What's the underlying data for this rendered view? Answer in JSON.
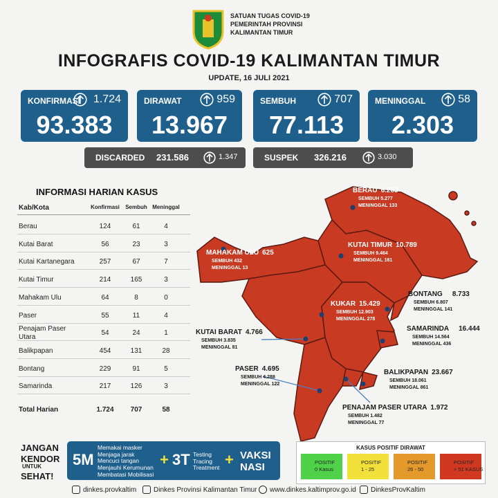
{
  "header": {
    "org": [
      "SATUAN TUGAS COVID-19",
      "PEMERINTAH PROVINSI",
      "KALIMANTAN TIMUR"
    ],
    "title": "INFOGRAFIS COVID-19 KALIMANTAN TIMUR",
    "update": "UPDATE, 16 JULI 2021"
  },
  "stats": [
    {
      "label": "KONFIRMASI",
      "change": "1.724",
      "total": "93.383"
    },
    {
      "label": "DIRAWAT",
      "change": "959",
      "total": "13.967"
    },
    {
      "label": "SEMBUH",
      "change": "707",
      "total": "77.113"
    },
    {
      "label": "MENINGGAL",
      "change": "58",
      "total": "2.303"
    }
  ],
  "secondary": [
    {
      "label": "DISCARDED",
      "total": "231.586",
      "change": "1.347"
    },
    {
      "label": "SUSPEK",
      "total": "326.216",
      "change": "3.030"
    }
  ],
  "table": {
    "title": "INFORMASI HARIAN KASUS",
    "columns": [
      "Kab/Kota",
      "Konfirmasi",
      "Sembuh",
      "Meninggal"
    ],
    "rows": [
      [
        "Berau",
        "124",
        "61",
        "4"
      ],
      [
        "Kutai Barat",
        "56",
        "23",
        "3"
      ],
      [
        "Kutai Kartanegara",
        "257",
        "67",
        "7"
      ],
      [
        "Kutai Timur",
        "214",
        "165",
        "3"
      ],
      [
        "Mahakam Ulu",
        "64",
        "8",
        "0"
      ],
      [
        "Paser",
        "55",
        "11",
        "4"
      ],
      [
        "Penajam Paser Utara",
        "54",
        "24",
        "1"
      ],
      [
        "Balikpapan",
        "454",
        "131",
        "28"
      ],
      [
        "Bontang",
        "229",
        "91",
        "5"
      ],
      [
        "Samarinda",
        "217",
        "126",
        "3"
      ]
    ],
    "total": [
      "Total Harian",
      "1.724",
      "707",
      "58"
    ]
  },
  "map": {
    "regions": [
      {
        "name": "BERAU",
        "total": "6.263",
        "sembuh": "SEMBUH 5.277",
        "meninggal": "MENINGGAL 133"
      },
      {
        "name": "MAHAKAM ULU",
        "total": "625",
        "sembuh": "SEMBUH 432",
        "meninggal": "MENINGGAL 13"
      },
      {
        "name": "KUTAI TIMUR",
        "total": "10.789",
        "sembuh": "SEMBUH 9.464",
        "meninggal": "MENINGGAL 161"
      },
      {
        "name": "BONTANG",
        "total": "8.733",
        "sembuh": "SEMBUH 6.807",
        "meninggal": "MENINGGAL 141"
      },
      {
        "name": "KUKAR",
        "total": "15.429",
        "sembuh": "SEMBUH 12.903",
        "meninggal": "MENINGGAL 278"
      },
      {
        "name": "KUTAI BARAT",
        "total": "4.766",
        "sembuh": "SEMBUH 3.835",
        "meninggal": "MENINGGAL 81"
      },
      {
        "name": "SAMARINDA",
        "total": "16.444",
        "sembuh": "SEMBUH 14.564",
        "meninggal": "MENINGGAL 436"
      },
      {
        "name": "PASER",
        "total": "4.695",
        "sembuh": "SEMBUH 4.288",
        "meninggal": "MENINGGAL 122"
      },
      {
        "name": "BALIKPAPAN",
        "total": "23.667",
        "sembuh": "SEMBUH 18.061",
        "meninggal": "MENINGGAL 861"
      },
      {
        "name": "PENAJAM PASER UTARA",
        "total": "1.972",
        "sembuh": "SEMBUH 1.482",
        "meninggal": "MENINGGAL 77"
      }
    ]
  },
  "footer": {
    "slogan": [
      "JANGAN",
      "KENDOR",
      "UNTUK",
      "SEHAT!"
    ],
    "m5": {
      "label": "5M",
      "items": [
        "Memakai masker",
        "Menjaga jarak",
        "Mencuci tangan",
        "Menjauhi Kerumunan",
        "Membatasi Mobilisasi"
      ]
    },
    "t3": {
      "label": "3T",
      "items": [
        "Testing",
        "Tracing",
        "Treatment"
      ]
    },
    "vaksin": [
      "VAKSI",
      "NASI"
    ]
  },
  "legend": {
    "title": "KASUS POSITIF DIRAWAT",
    "items": [
      {
        "title": "POSITIF",
        "range": "0 Kasus",
        "color": "#4fd14a"
      },
      {
        "title": "POSITIF",
        "range": "1 - 25",
        "color": "#f2e13a"
      },
      {
        "title": "POSITIF",
        "range": "26 - 50",
        "color": "#e39a2a"
      },
      {
        "title": "POSITIF",
        "range": "> 51 KASUS",
        "color": "#d0391f"
      }
    ]
  },
  "social": [
    "dinkes.provkaltim",
    "Dinkes Provinsi Kalimantan Timur",
    "www.dinkes.kaltimprov.go.id",
    "DinkesProvKaltim"
  ]
}
